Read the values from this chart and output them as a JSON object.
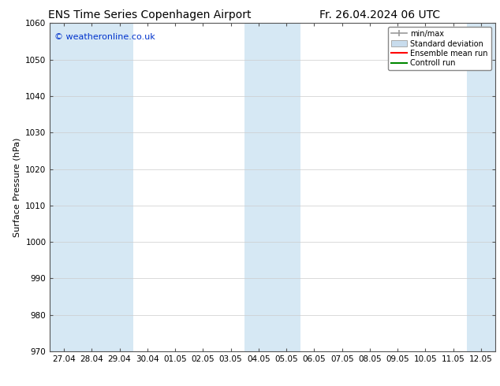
{
  "title_left": "ENS Time Series Copenhagen Airport",
  "title_right": "Fr. 26.04.2024 06 UTC",
  "ylabel": "Surface Pressure (hPa)",
  "ylim": [
    970,
    1060
  ],
  "yticks": [
    970,
    980,
    990,
    1000,
    1010,
    1020,
    1030,
    1040,
    1050,
    1060
  ],
  "x_labels": [
    "27.04",
    "28.04",
    "29.04",
    "30.04",
    "01.05",
    "02.05",
    "03.05",
    "04.05",
    "05.05",
    "06.05",
    "07.05",
    "08.05",
    "09.05",
    "10.05",
    "11.05",
    "12.05"
  ],
  "watermark": "© weatheronline.co.uk",
  "watermark_color": "#0033cc",
  "bg_color": "#ffffff",
  "plot_bg_color": "#ffffff",
  "shaded_indices": [
    0,
    1,
    2,
    7,
    8,
    15
  ],
  "shaded_color": "#d6e8f4",
  "legend_labels": [
    "min/max",
    "Standard deviation",
    "Ensemble mean run",
    "Controll run"
  ],
  "legend_colors_line": [
    "#999999",
    "#c0d4e8",
    "#ff0000",
    "#00aa00"
  ],
  "title_fontsize": 10,
  "ylabel_fontsize": 8,
  "tick_fontsize": 7.5,
  "watermark_fontsize": 8
}
